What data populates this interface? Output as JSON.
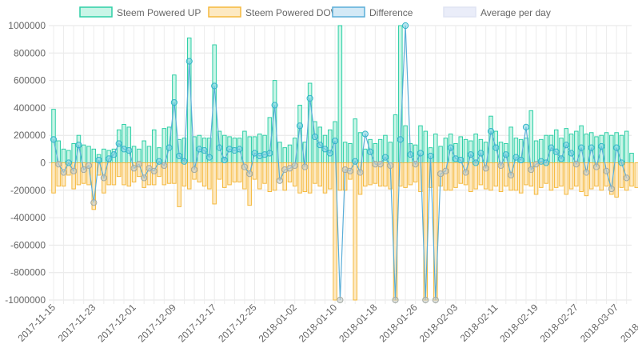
{
  "chart_data": {
    "type": "bar",
    "legend": [
      {
        "label": "Steem Powered UP",
        "stroke": "#2ecfa6",
        "fill": "#c9f5e7"
      },
      {
        "label": "Steem Powered DOWN",
        "stroke": "#f5b93d",
        "fill": "#fde9c2"
      },
      {
        "label": "Difference",
        "stroke": "#5aaed8",
        "fill": "#d3e9f6"
      },
      {
        "label": "Average per day",
        "stroke": "#dfe3f3",
        "fill": "#eaedf9"
      }
    ],
    "legend_position": "top",
    "ylim": [
      -1000000,
      1000000
    ],
    "y_ticks": [
      "1000000",
      "800000",
      "600000",
      "400000",
      "200000",
      "0",
      "-200000",
      "-400000",
      "-600000",
      "-800000",
      "-1000000"
    ],
    "y_tick_values": [
      1000000,
      800000,
      600000,
      400000,
      200000,
      0,
      -200000,
      -400000,
      -600000,
      -800000,
      -1000000
    ],
    "x_tick_labels": [
      "2017-11-15",
      "2017-11-23",
      "2017-12-01",
      "2017-12-09",
      "2017-12-17",
      "2017-12-25",
      "2018-01-02",
      "2018-01-10",
      "2018-01-18",
      "2018-01-26",
      "2018-02-03",
      "2018-02-11",
      "2018-02-19",
      "2018-02-27",
      "2018-03-07",
      "2018-03-15",
      "2018-03-28"
    ],
    "x_tick_days": [
      0,
      8,
      16,
      24,
      32,
      40,
      48,
      56,
      64,
      72,
      80,
      88,
      96,
      104,
      112,
      120,
      133
    ],
    "grid": true,
    "day_start": "2017-11-15",
    "series": [
      {
        "name": "Steem Powered UP",
        "values": [
          390000,
          160000,
          100000,
          90000,
          140000,
          200000,
          130000,
          120000,
          100000,
          60000,
          100000,
          90000,
          100000,
          240000,
          280000,
          260000,
          120000,
          100000,
          160000,
          120000,
          240000,
          110000,
          250000,
          260000,
          640000,
          170000,
          180000,
          910000,
          190000,
          200000,
          180000,
          180000,
          860000,
          230000,
          200000,
          190000,
          180000,
          180000,
          230000,
          190000,
          190000,
          210000,
          200000,
          330000,
          600000,
          150000,
          110000,
          130000,
          180000,
          420000,
          150000,
          580000,
          300000,
          260000,
          200000,
          240000,
          300000,
          1000000,
          150000,
          140000,
          320000,
          220000,
          100000,
          170000,
          140000,
          170000,
          200000,
          150000,
          350000,
          1000000,
          270000,
          140000,
          130000,
          270000,
          230000,
          110000,
          210000,
          120000,
          180000,
          210000,
          140000,
          190000,
          170000,
          160000,
          210000,
          170000,
          150000,
          340000,
          230000,
          150000,
          140000,
          260000,
          180000,
          170000,
          180000,
          380000,
          160000,
          170000,
          200000,
          200000,
          240000,
          180000,
          250000,
          210000,
          230000,
          270000,
          210000,
          220000,
          190000,
          200000,
          220000,
          200000,
          220000,
          200000,
          230000,
          70000
        ],
        "color": "#2ecfa6"
      },
      {
        "name": "Steem Powered DOWN",
        "values": [
          -220000,
          -170000,
          -170000,
          -90000,
          -190000,
          -160000,
          -150000,
          -160000,
          -340000,
          -90000,
          -220000,
          -160000,
          -160000,
          -100000,
          -160000,
          -170000,
          -140000,
          -100000,
          -180000,
          -160000,
          -160000,
          -100000,
          -160000,
          -150000,
          -150000,
          -320000,
          -170000,
          -190000,
          -120000,
          -140000,
          -170000,
          -190000,
          -300000,
          -120000,
          -180000,
          -160000,
          -140000,
          -140000,
          -190000,
          -310000,
          -120000,
          -190000,
          -150000,
          -210000,
          -200000,
          -120000,
          -200000,
          -140000,
          -170000,
          -220000,
          -210000,
          -220000,
          -150000,
          -170000,
          -220000,
          -190000,
          -1000000,
          -200000,
          -200000,
          -120000,
          -1000000,
          -230000,
          -170000,
          -160000,
          -150000,
          -170000,
          -170000,
          -190000,
          -1000000,
          -170000,
          -180000,
          -160000,
          -140000,
          -210000,
          -1000000,
          -180000,
          -1000000,
          -170000,
          -200000,
          -200000,
          -180000,
          -150000,
          -160000,
          -210000,
          -190000,
          -160000,
          -190000,
          -200000,
          -170000,
          -210000,
          -170000,
          -200000,
          -200000,
          -220000,
          -160000,
          -170000,
          -230000,
          -180000,
          -150000,
          -200000,
          -180000,
          -170000,
          -230000,
          -190000,
          -170000,
          -210000,
          -240000,
          -190000,
          -170000,
          -200000,
          -170000,
          -230000,
          -250000,
          -180000,
          -200000,
          -170000,
          -180000
        ],
        "color": "#f5b93d"
      },
      {
        "name": "Difference",
        "values": [
          170000,
          -10000,
          -70000,
          0,
          -60000,
          130000,
          -50000,
          -20000,
          -290000,
          20000,
          -110000,
          30000,
          60000,
          140000,
          100000,
          90000,
          -40000,
          -10000,
          -110000,
          -40000,
          -60000,
          10000,
          -20000,
          110000,
          440000,
          50000,
          10000,
          740000,
          -50000,
          100000,
          90000,
          40000,
          560000,
          110000,
          20000,
          100000,
          90000,
          100000,
          -30000,
          -80000,
          70000,
          50000,
          60000,
          70000,
          420000,
          -130000,
          -50000,
          -40000,
          -20000,
          270000,
          -30000,
          470000,
          190000,
          130000,
          100000,
          70000,
          160000,
          -1000000,
          -50000,
          -60000,
          10000,
          -70000,
          210000,
          80000,
          -10000,
          -10000,
          40000,
          -20000,
          -1000000,
          170000,
          1000000,
          60000,
          -10000,
          70000,
          -1000000,
          50000,
          -1000000,
          -80000,
          -60000,
          110000,
          30000,
          20000,
          -70000,
          60000,
          0,
          70000,
          -40000,
          230000,
          110000,
          -20000,
          60000,
          -90000,
          40000,
          20000,
          260000,
          -50000,
          -10000,
          10000,
          0,
          110000,
          80000,
          30000,
          130000,
          70000,
          -10000,
          110000,
          -70000,
          110000,
          -30000,
          120000,
          -60000,
          -190000,
          110000,
          0,
          -110000
        ],
        "color": "#5aaed8"
      }
    ]
  }
}
